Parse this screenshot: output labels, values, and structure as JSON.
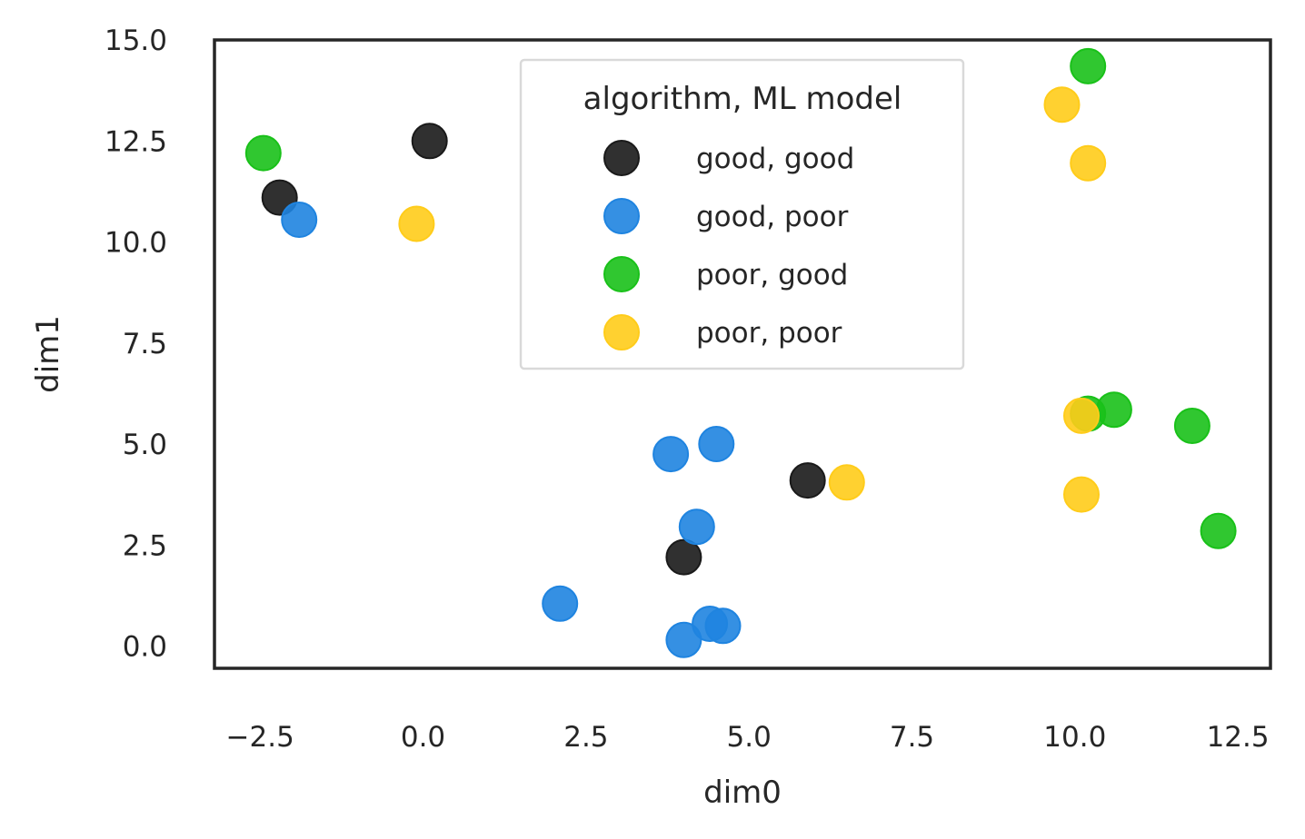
{
  "chart_data": {
    "type": "scatter",
    "title": "",
    "xlabel": "dim0",
    "ylabel": "dim1",
    "xlim": [
      -3.2,
      13.0
    ],
    "ylim": [
      -0.55,
      15.0
    ],
    "xticks": [
      -2.5,
      0.0,
      2.5,
      5.0,
      7.5,
      10.0,
      12.5
    ],
    "xtick_labels": [
      "−2.5",
      "0.0",
      "2.5",
      "5.0",
      "7.5",
      "10.0",
      "12.5"
    ],
    "yticks": [
      0.0,
      2.5,
      5.0,
      7.5,
      10.0,
      12.5,
      15.0
    ],
    "ytick_labels": [
      "0.0",
      "2.5",
      "5.0",
      "7.5",
      "10.0",
      "12.5",
      "15.0"
    ],
    "grid": false,
    "legend": {
      "title": "algorithm, ML model",
      "placement": "top-center"
    },
    "series": [
      {
        "name": "good, good",
        "color": "#1a1a1a",
        "points": [
          [
            -2.2,
            11.1
          ],
          [
            0.1,
            12.5
          ],
          [
            5.9,
            4.1
          ],
          [
            4.0,
            2.2
          ]
        ]
      },
      {
        "name": "good, poor",
        "color": "#1f84e0",
        "points": [
          [
            -1.9,
            10.55
          ],
          [
            3.8,
            4.75
          ],
          [
            4.5,
            5.0
          ],
          [
            4.2,
            2.95
          ],
          [
            2.1,
            1.05
          ],
          [
            4.4,
            0.55
          ],
          [
            4.6,
            0.5
          ],
          [
            4.0,
            0.15
          ]
        ]
      },
      {
        "name": "poor, good",
        "color": "#19c119",
        "points": [
          [
            -2.45,
            12.2
          ],
          [
            10.2,
            14.35
          ],
          [
            10.2,
            5.75
          ],
          [
            10.6,
            5.85
          ],
          [
            11.8,
            5.45
          ],
          [
            12.2,
            2.85
          ]
        ]
      },
      {
        "name": "poor, poor",
        "color": "#ffcc1a",
        "points": [
          [
            -0.1,
            10.45
          ],
          [
            9.8,
            13.4
          ],
          [
            10.2,
            11.95
          ],
          [
            10.1,
            5.7
          ],
          [
            6.5,
            4.05
          ],
          [
            10.1,
            3.75
          ]
        ]
      }
    ]
  }
}
